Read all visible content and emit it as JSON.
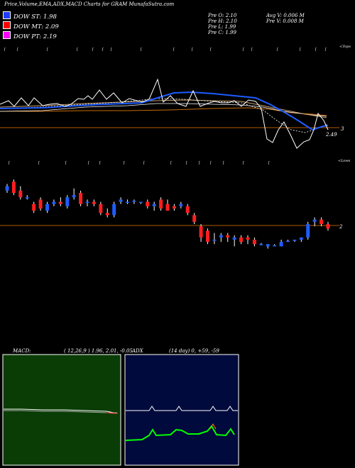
{
  "header": {
    "title": "Price,Volume,EMA,ADX,MACD Charts for GRAM MunafaSutra.com"
  },
  "legend": [
    {
      "label": "DOW ST: 1.98",
      "color": "#1e3cff"
    },
    {
      "label": "DOW MT: 2.09",
      "color": "#ff0000"
    },
    {
      "label": "DOW PT: 2.19",
      "color": "#ff00ff"
    }
  ],
  "stats": {
    "col1": [
      "Pre  O: 2.10",
      "Pre  H: 2.10",
      "Pre  L: 1.99",
      "Pre  C: 1.99"
    ],
    "col2": [
      "Avg V: 0.006  M",
      "Pre  V: 0.008 M"
    ]
  },
  "ema_panel": {
    "corner_label": "<Tops",
    "level_label": "2.49",
    "right_tick": "3"
  },
  "candle_panel": {
    "corner_label": "<Lows",
    "right_tick": "2"
  },
  "macd_panel": {
    "name": "MACD:",
    "params": "( 12,26,9 ) 1.96,  2.01, -0.05"
  },
  "adx_panel": {
    "name": "ADX",
    "params": "(14  day) 0,  +59, -59"
  },
  "chart_data": {
    "type": "candlestick",
    "candles": [
      {
        "o": 2.29,
        "h": 2.32,
        "l": 2.28,
        "c": 2.31
      },
      {
        "o": 2.33,
        "h": 2.34,
        "l": 2.27,
        "c": 2.28
      },
      {
        "o": 2.29,
        "h": 2.31,
        "l": 2.25,
        "c": 2.26
      },
      {
        "o": 2.26,
        "h": 2.27,
        "l": 2.25,
        "c": 2.26
      },
      {
        "o": 2.23,
        "h": 2.24,
        "l": 2.19,
        "c": 2.2
      },
      {
        "o": 2.25,
        "h": 2.26,
        "l": 2.2,
        "c": 2.21
      },
      {
        "o": 2.2,
        "h": 2.24,
        "l": 2.19,
        "c": 2.23
      },
      {
        "o": 2.23,
        "h": 2.25,
        "l": 2.22,
        "c": 2.24
      },
      {
        "o": 2.24,
        "h": 2.26,
        "l": 2.22,
        "c": 2.23
      },
      {
        "o": 2.22,
        "h": 2.27,
        "l": 2.21,
        "c": 2.26
      },
      {
        "o": 2.26,
        "h": 2.3,
        "l": 2.25,
        "c": 2.27
      },
      {
        "o": 2.28,
        "h": 2.29,
        "l": 2.22,
        "c": 2.23
      },
      {
        "o": 2.24,
        "h": 2.25,
        "l": 2.22,
        "c": 2.24
      },
      {
        "o": 2.24,
        "h": 2.25,
        "l": 2.22,
        "c": 2.23
      },
      {
        "o": 2.23,
        "h": 2.24,
        "l": 2.18,
        "c": 2.19
      },
      {
        "o": 2.19,
        "h": 2.21,
        "l": 2.17,
        "c": 2.18
      },
      {
        "o": 2.18,
        "h": 2.24,
        "l": 2.17,
        "c": 2.23
      },
      {
        "o": 2.24,
        "h": 2.26,
        "l": 2.23,
        "c": 2.25
      },
      {
        "o": 2.24,
        "h": 2.25,
        "l": 2.23,
        "c": 2.24
      },
      {
        "o": 2.24,
        "h": 2.25,
        "l": 2.23,
        "c": 2.245
      },
      {
        "o": 2.24,
        "h": 2.24,
        "l": 2.23,
        "c": 2.24
      },
      {
        "o": 2.24,
        "h": 2.25,
        "l": 2.21,
        "c": 2.22
      },
      {
        "o": 2.22,
        "h": 2.24,
        "l": 2.2,
        "c": 2.23
      },
      {
        "o": 2.25,
        "h": 2.26,
        "l": 2.2,
        "c": 2.21
      },
      {
        "o": 2.23,
        "h": 2.25,
        "l": 2.2,
        "c": 2.2
      },
      {
        "o": 2.22,
        "h": 2.23,
        "l": 2.2,
        "c": 2.21
      },
      {
        "o": 2.22,
        "h": 2.24,
        "l": 2.21,
        "c": 2.23
      },
      {
        "o": 2.22,
        "h": 2.23,
        "l": 2.18,
        "c": 2.19
      },
      {
        "o": 2.18,
        "h": 2.19,
        "l": 2.14,
        "c": 2.15
      },
      {
        "o": 2.13,
        "h": 2.14,
        "l": 2.06,
        "c": 2.08
      },
      {
        "o": 2.11,
        "h": 2.12,
        "l": 2.05,
        "c": 2.06
      },
      {
        "o": 2.07,
        "h": 2.1,
        "l": 2.05,
        "c": 2.07
      },
      {
        "o": 2.08,
        "h": 2.1,
        "l": 2.06,
        "c": 2.09
      },
      {
        "o": 2.09,
        "h": 2.1,
        "l": 2.06,
        "c": 2.08
      },
      {
        "o": 2.07,
        "h": 2.09,
        "l": 2.04,
        "c": 2.08
      },
      {
        "o": 2.08,
        "h": 2.09,
        "l": 2.05,
        "c": 2.06
      },
      {
        "o": 2.08,
        "h": 2.09,
        "l": 2.05,
        "c": 2.07
      },
      {
        "o": 2.07,
        "h": 2.08,
        "l": 2.04,
        "c": 2.05
      },
      {
        "o": 2.05,
        "h": 2.055,
        "l": 2.045,
        "c": 2.05
      },
      {
        "o": 2.04,
        "h": 2.05,
        "l": 2.03,
        "c": 2.05
      },
      {
        "o": 2.04,
        "h": 2.05,
        "l": 2.04,
        "c": 2.045
      },
      {
        "o": 2.04,
        "h": 2.07,
        "l": 2.04,
        "c": 2.06
      },
      {
        "o": 2.06,
        "h": 2.07,
        "l": 2.06,
        "c": 2.065
      },
      {
        "o": 2.065,
        "h": 2.07,
        "l": 2.06,
        "c": 2.07
      },
      {
        "o": 2.07,
        "h": 2.08,
        "l": 2.06,
        "c": 2.08
      },
      {
        "o": 2.08,
        "h": 2.15,
        "l": 2.07,
        "c": 2.14
      },
      {
        "o": 2.15,
        "h": 2.17,
        "l": 2.13,
        "c": 2.16
      },
      {
        "o": 2.16,
        "h": 2.17,
        "l": 2.13,
        "c": 2.14
      },
      {
        "o": 2.14,
        "h": 2.15,
        "l": 2.11,
        "c": 2.12
      }
    ],
    "ylim": [
      2.0,
      2.35
    ],
    "close_line": [
      1.99
    ]
  }
}
